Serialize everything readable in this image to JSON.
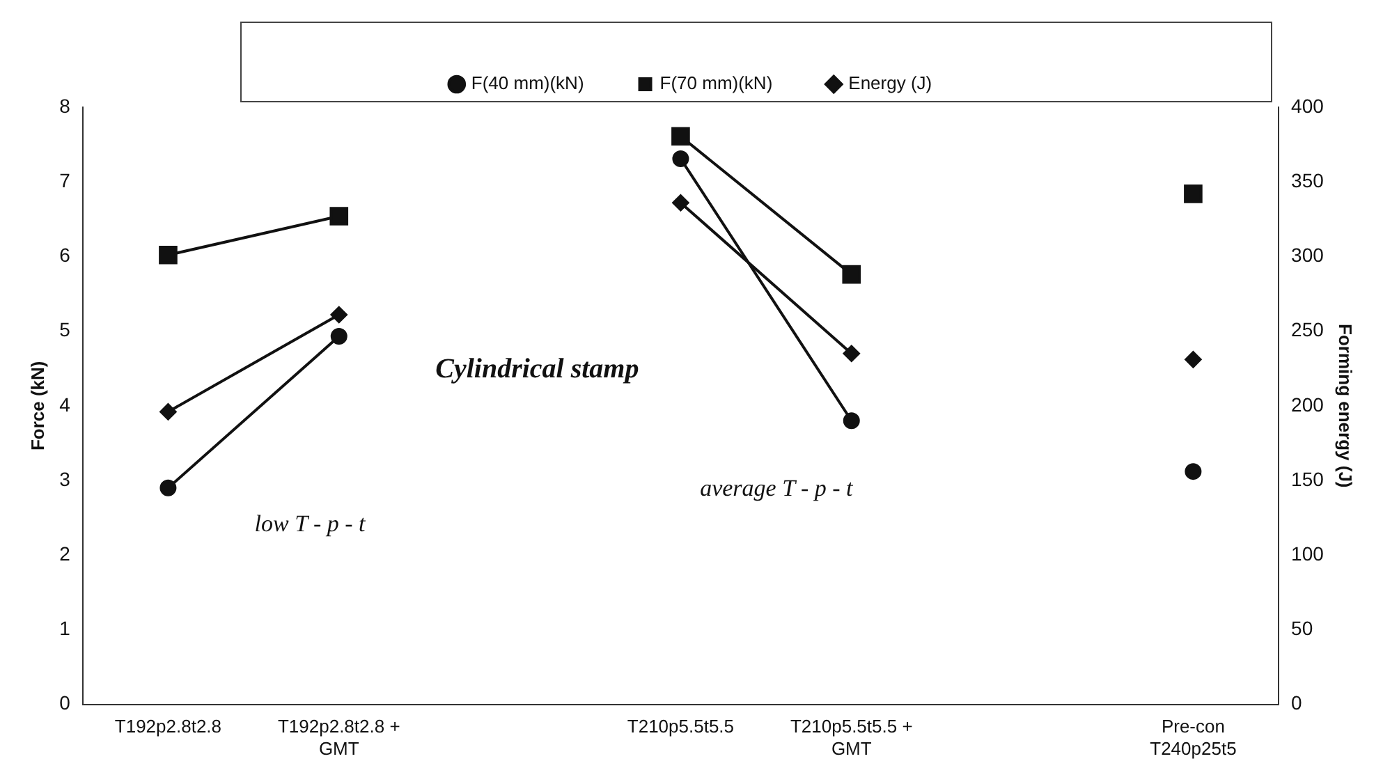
{
  "chart_data": {
    "type": "line",
    "categories": [
      "T192p2.8t2.8",
      "T192p2.8t2.8 + GMT",
      null,
      "T210p5.5t5.5",
      "T210p5.5t5.5 + GMT",
      null,
      "Pre-con T240p25t5"
    ],
    "series": [
      {
        "name": "F(40 mm)(kN)",
        "color": "#111111",
        "marker": "circle",
        "values": [
          2.9,
          4.93,
          null,
          7.31,
          3.8,
          null,
          3.12
        ]
      },
      {
        "name": "F(70 mm)(kN)",
        "color": "#111111",
        "marker": "square",
        "values": [
          6.02,
          6.54,
          null,
          7.61,
          5.76,
          null,
          6.84
        ]
      },
      {
        "name": "Energy (J)",
        "color": "#111111",
        "marker": "diamond",
        "axis": "y2",
        "values": [
          196,
          261,
          null,
          336,
          235,
          null,
          231
        ]
      }
    ],
    "ylabel": "Force (kN)",
    "y2label": "Forming energy (J)",
    "ylim": [
      0,
      8
    ],
    "yticks": [
      0,
      1,
      2,
      3,
      4,
      5,
      6,
      7,
      8
    ],
    "y2lim": [
      0,
      400
    ],
    "y2ticks": [
      0,
      50,
      100,
      150,
      200,
      250,
      300,
      350,
      400
    ],
    "annotations": [
      "Cylindrical stamp",
      "low T - p - t",
      "average T - p - t"
    ],
    "legend": "top",
    "grid": false
  }
}
